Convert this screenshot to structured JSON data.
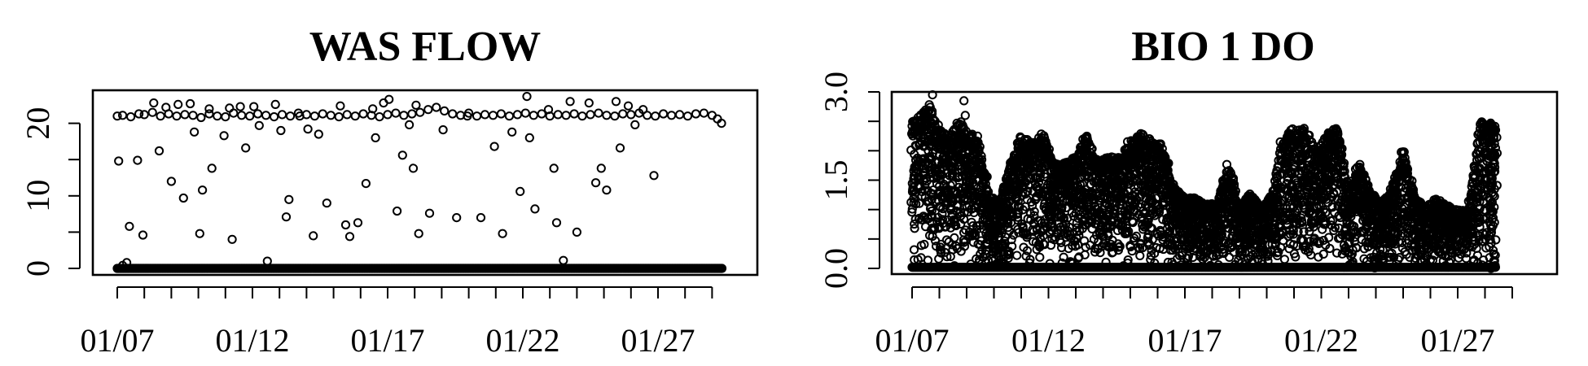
{
  "chart_data": [
    {
      "type": "scatter",
      "title": "WAS FLOW",
      "xlabel": "",
      "ylabel": "",
      "x_tick_labels": [
        "01/07",
        "01/12",
        "01/17",
        "01/22",
        "01/27"
      ],
      "x_tick_days": [
        7,
        12,
        17,
        22,
        27
      ],
      "x_minor_tick_days": [
        7,
        8,
        9,
        10,
        11,
        12,
        13,
        14,
        15,
        16,
        17,
        18,
        19,
        20,
        21,
        22,
        23,
        24,
        25,
        26,
        27,
        28,
        29
      ],
      "xlim": [
        6.6,
        30.4
      ],
      "y_ticks": [
        0,
        10,
        20
      ],
      "y_tick_labels": [
        "0",
        "10",
        "20"
      ],
      "y_minor_ticks": [
        0,
        5,
        10,
        15,
        20
      ],
      "ylim": [
        -1,
        25
      ],
      "points": [
        [
          7.0,
          21.0
        ],
        [
          7.2,
          21.1
        ],
        [
          7.5,
          20.9
        ],
        [
          7.8,
          21.3
        ],
        [
          8.0,
          21.2
        ],
        [
          8.3,
          21.5
        ],
        [
          8.6,
          21.0
        ],
        [
          8.9,
          21.3
        ],
        [
          9.2,
          21.0
        ],
        [
          9.5,
          21.2
        ],
        [
          9.8,
          21.1
        ],
        [
          10.1,
          20.8
        ],
        [
          10.4,
          21.3
        ],
        [
          10.7,
          21.0
        ],
        [
          11.0,
          20.9
        ],
        [
          11.3,
          21.4
        ],
        [
          11.6,
          21.1
        ],
        [
          11.9,
          21.0
        ],
        [
          12.2,
          21.3
        ],
        [
          12.5,
          21.1
        ],
        [
          12.8,
          20.9
        ],
        [
          13.1,
          21.2
        ],
        [
          13.4,
          21.0
        ],
        [
          13.7,
          21.4
        ],
        [
          14.0,
          21.2
        ],
        [
          14.3,
          21.0
        ],
        [
          14.6,
          21.3
        ],
        [
          14.9,
          21.1
        ],
        [
          15.2,
          20.9
        ],
        [
          15.5,
          21.2
        ],
        [
          15.8,
          21.0
        ],
        [
          16.1,
          21.3
        ],
        [
          16.4,
          21.1
        ],
        [
          16.7,
          20.9
        ],
        [
          17.0,
          21.2
        ],
        [
          17.3,
          21.4
        ],
        [
          17.6,
          21.1
        ],
        [
          17.9,
          21.3
        ],
        [
          18.2,
          21.5
        ],
        [
          18.5,
          21.9
        ],
        [
          18.8,
          22.2
        ],
        [
          19.1,
          21.7
        ],
        [
          19.4,
          21.3
        ],
        [
          19.7,
          21.1
        ],
        [
          20.0,
          21.4
        ],
        [
          20.3,
          21.0
        ],
        [
          20.6,
          21.2
        ],
        [
          20.9,
          21.1
        ],
        [
          21.2,
          21.3
        ],
        [
          21.5,
          21.0
        ],
        [
          21.8,
          21.2
        ],
        [
          22.1,
          21.4
        ],
        [
          22.4,
          21.1
        ],
        [
          22.7,
          21.3
        ],
        [
          23.0,
          21.0
        ],
        [
          23.3,
          21.2
        ],
        [
          23.6,
          21.1
        ],
        [
          23.9,
          21.3
        ],
        [
          24.2,
          21.0
        ],
        [
          24.5,
          21.2
        ],
        [
          24.8,
          21.4
        ],
        [
          25.1,
          21.1
        ],
        [
          25.4,
          21.0
        ],
        [
          25.7,
          21.3
        ],
        [
          26.0,
          21.2
        ],
        [
          26.3,
          21.4
        ],
        [
          26.6,
          21.1
        ],
        [
          26.9,
          21.0
        ],
        [
          27.2,
          21.3
        ],
        [
          27.5,
          21.1
        ],
        [
          27.8,
          21.2
        ],
        [
          28.1,
          21.0
        ],
        [
          28.4,
          21.3
        ],
        [
          28.7,
          21.4
        ],
        [
          29.0,
          21.1
        ],
        [
          29.2,
          20.6
        ],
        [
          29.35,
          20.0
        ],
        [
          7.05,
          14.8
        ],
        [
          7.2,
          0.4
        ],
        [
          7.35,
          0.8
        ],
        [
          7.45,
          5.8
        ],
        [
          7.75,
          14.9
        ],
        [
          7.95,
          4.6
        ],
        [
          8.35,
          22.8
        ],
        [
          8.55,
          16.2
        ],
        [
          8.8,
          22.2
        ],
        [
          9.0,
          12.0
        ],
        [
          9.25,
          22.6
        ],
        [
          9.45,
          9.7
        ],
        [
          9.7,
          22.7
        ],
        [
          9.85,
          18.8
        ],
        [
          10.05,
          4.8
        ],
        [
          10.15,
          10.8
        ],
        [
          10.4,
          22.0
        ],
        [
          10.5,
          13.8
        ],
        [
          10.95,
          18.3
        ],
        [
          11.15,
          22.1
        ],
        [
          11.25,
          4.0
        ],
        [
          11.55,
          22.3
        ],
        [
          11.75,
          16.6
        ],
        [
          12.05,
          22.3
        ],
        [
          12.25,
          19.7
        ],
        [
          12.55,
          1.0
        ],
        [
          12.85,
          22.6
        ],
        [
          13.05,
          19.0
        ],
        [
          13.25,
          7.1
        ],
        [
          13.35,
          9.5
        ],
        [
          13.75,
          21.0
        ],
        [
          14.05,
          19.2
        ],
        [
          14.25,
          4.5
        ],
        [
          14.45,
          18.5
        ],
        [
          14.75,
          9.0
        ],
        [
          15.25,
          22.4
        ],
        [
          15.45,
          6.0
        ],
        [
          15.6,
          4.4
        ],
        [
          15.9,
          6.3
        ],
        [
          16.2,
          11.7
        ],
        [
          16.45,
          22.0
        ],
        [
          16.55,
          18.0
        ],
        [
          16.85,
          22.8
        ],
        [
          17.05,
          23.3
        ],
        [
          17.35,
          7.9
        ],
        [
          17.55,
          15.6
        ],
        [
          17.8,
          19.8
        ],
        [
          17.95,
          13.8
        ],
        [
          18.05,
          22.5
        ],
        [
          18.15,
          4.8
        ],
        [
          18.55,
          7.6
        ],
        [
          19.05,
          19.1
        ],
        [
          19.55,
          7.0
        ],
        [
          19.95,
          21.0
        ],
        [
          20.45,
          7.0
        ],
        [
          20.95,
          16.8
        ],
        [
          21.25,
          4.8
        ],
        [
          21.6,
          18.8
        ],
        [
          21.9,
          10.6
        ],
        [
          22.15,
          23.7
        ],
        [
          22.25,
          18.0
        ],
        [
          22.45,
          8.2
        ],
        [
          22.95,
          21.9
        ],
        [
          23.15,
          13.8
        ],
        [
          23.25,
          6.3
        ],
        [
          23.5,
          1.1
        ],
        [
          23.75,
          23.0
        ],
        [
          24.0,
          5.0
        ],
        [
          24.45,
          22.8
        ],
        [
          24.7,
          11.8
        ],
        [
          24.9,
          13.8
        ],
        [
          25.1,
          10.8
        ],
        [
          25.45,
          23.0
        ],
        [
          25.6,
          16.6
        ],
        [
          25.9,
          22.4
        ],
        [
          26.15,
          19.8
        ],
        [
          26.45,
          21.9
        ],
        [
          26.85,
          12.8
        ]
      ],
      "zero_series_x_range": [
        7.0,
        29.4
      ],
      "zero_series_value": 0
    },
    {
      "type": "scatter",
      "title": "BIO 1 DO",
      "xlabel": "",
      "ylabel": "",
      "x_tick_labels": [
        "01/07",
        "01/12",
        "01/17",
        "01/22",
        "01/27"
      ],
      "x_tick_days": [
        7,
        12,
        17,
        22,
        27
      ],
      "x_minor_tick_days": [
        7,
        8,
        9,
        10,
        11,
        12,
        13,
        14,
        15,
        16,
        17,
        18,
        19,
        20,
        21,
        22,
        23,
        24,
        25,
        26,
        27,
        28,
        29
      ],
      "xlim": [
        6.6,
        30.4
      ],
      "y_ticks": [
        0.0,
        1.5,
        3.0
      ],
      "y_tick_labels": [
        "0.0",
        "1.5",
        "3.0"
      ],
      "y_minor_ticks": [
        0.0,
        0.5,
        1.0,
        1.5,
        2.0,
        2.5,
        3.0
      ],
      "ylim": [
        0,
        3.0
      ],
      "envelope": [
        [
          7.0,
          2.5
        ],
        [
          7.3,
          2.6
        ],
        [
          7.6,
          2.8
        ],
        [
          8.0,
          2.4
        ],
        [
          8.3,
          2.2
        ],
        [
          8.7,
          2.6
        ],
        [
          9.0,
          2.3
        ],
        [
          9.4,
          2.3
        ],
        [
          9.8,
          1.3
        ],
        [
          10.2,
          1.1
        ],
        [
          10.6,
          1.8
        ],
        [
          11.0,
          2.3
        ],
        [
          11.4,
          2.1
        ],
        [
          11.8,
          2.3
        ],
        [
          12.2,
          1.8
        ],
        [
          12.6,
          1.8
        ],
        [
          13.0,
          1.9
        ],
        [
          13.4,
          2.3
        ],
        [
          13.8,
          1.8
        ],
        [
          14.2,
          1.9
        ],
        [
          14.6,
          1.9
        ],
        [
          15.0,
          2.2
        ],
        [
          15.4,
          2.3
        ],
        [
          15.8,
          2.2
        ],
        [
          16.2,
          2.1
        ],
        [
          16.6,
          1.4
        ],
        [
          17.0,
          1.2
        ],
        [
          17.4,
          1.2
        ],
        [
          17.8,
          1.1
        ],
        [
          18.2,
          1.1
        ],
        [
          18.6,
          1.8
        ],
        [
          19.0,
          1.0
        ],
        [
          19.4,
          1.3
        ],
        [
          19.8,
          1.0
        ],
        [
          20.2,
          1.3
        ],
        [
          20.6,
          2.3
        ],
        [
          21.0,
          2.4
        ],
        [
          21.4,
          2.4
        ],
        [
          21.8,
          2.0
        ],
        [
          22.2,
          2.3
        ],
        [
          22.6,
          2.4
        ],
        [
          23.0,
          1.3
        ],
        [
          23.4,
          1.8
        ],
        [
          23.8,
          1.3
        ],
        [
          24.2,
          1.1
        ],
        [
          24.6,
          1.4
        ],
        [
          25.0,
          2.0
        ],
        [
          25.4,
          1.3
        ],
        [
          25.8,
          1.0
        ],
        [
          26.2,
          1.2
        ],
        [
          26.6,
          1.1
        ],
        [
          27.0,
          1.0
        ],
        [
          27.4,
          1.0
        ],
        [
          27.8,
          2.5
        ],
        [
          28.2,
          2.5
        ],
        [
          28.4,
          2.4
        ]
      ],
      "outliers": [
        [
          7.75,
          2.95
        ],
        [
          8.9,
          2.85
        ],
        [
          8.95,
          2.6
        ]
      ]
    }
  ]
}
